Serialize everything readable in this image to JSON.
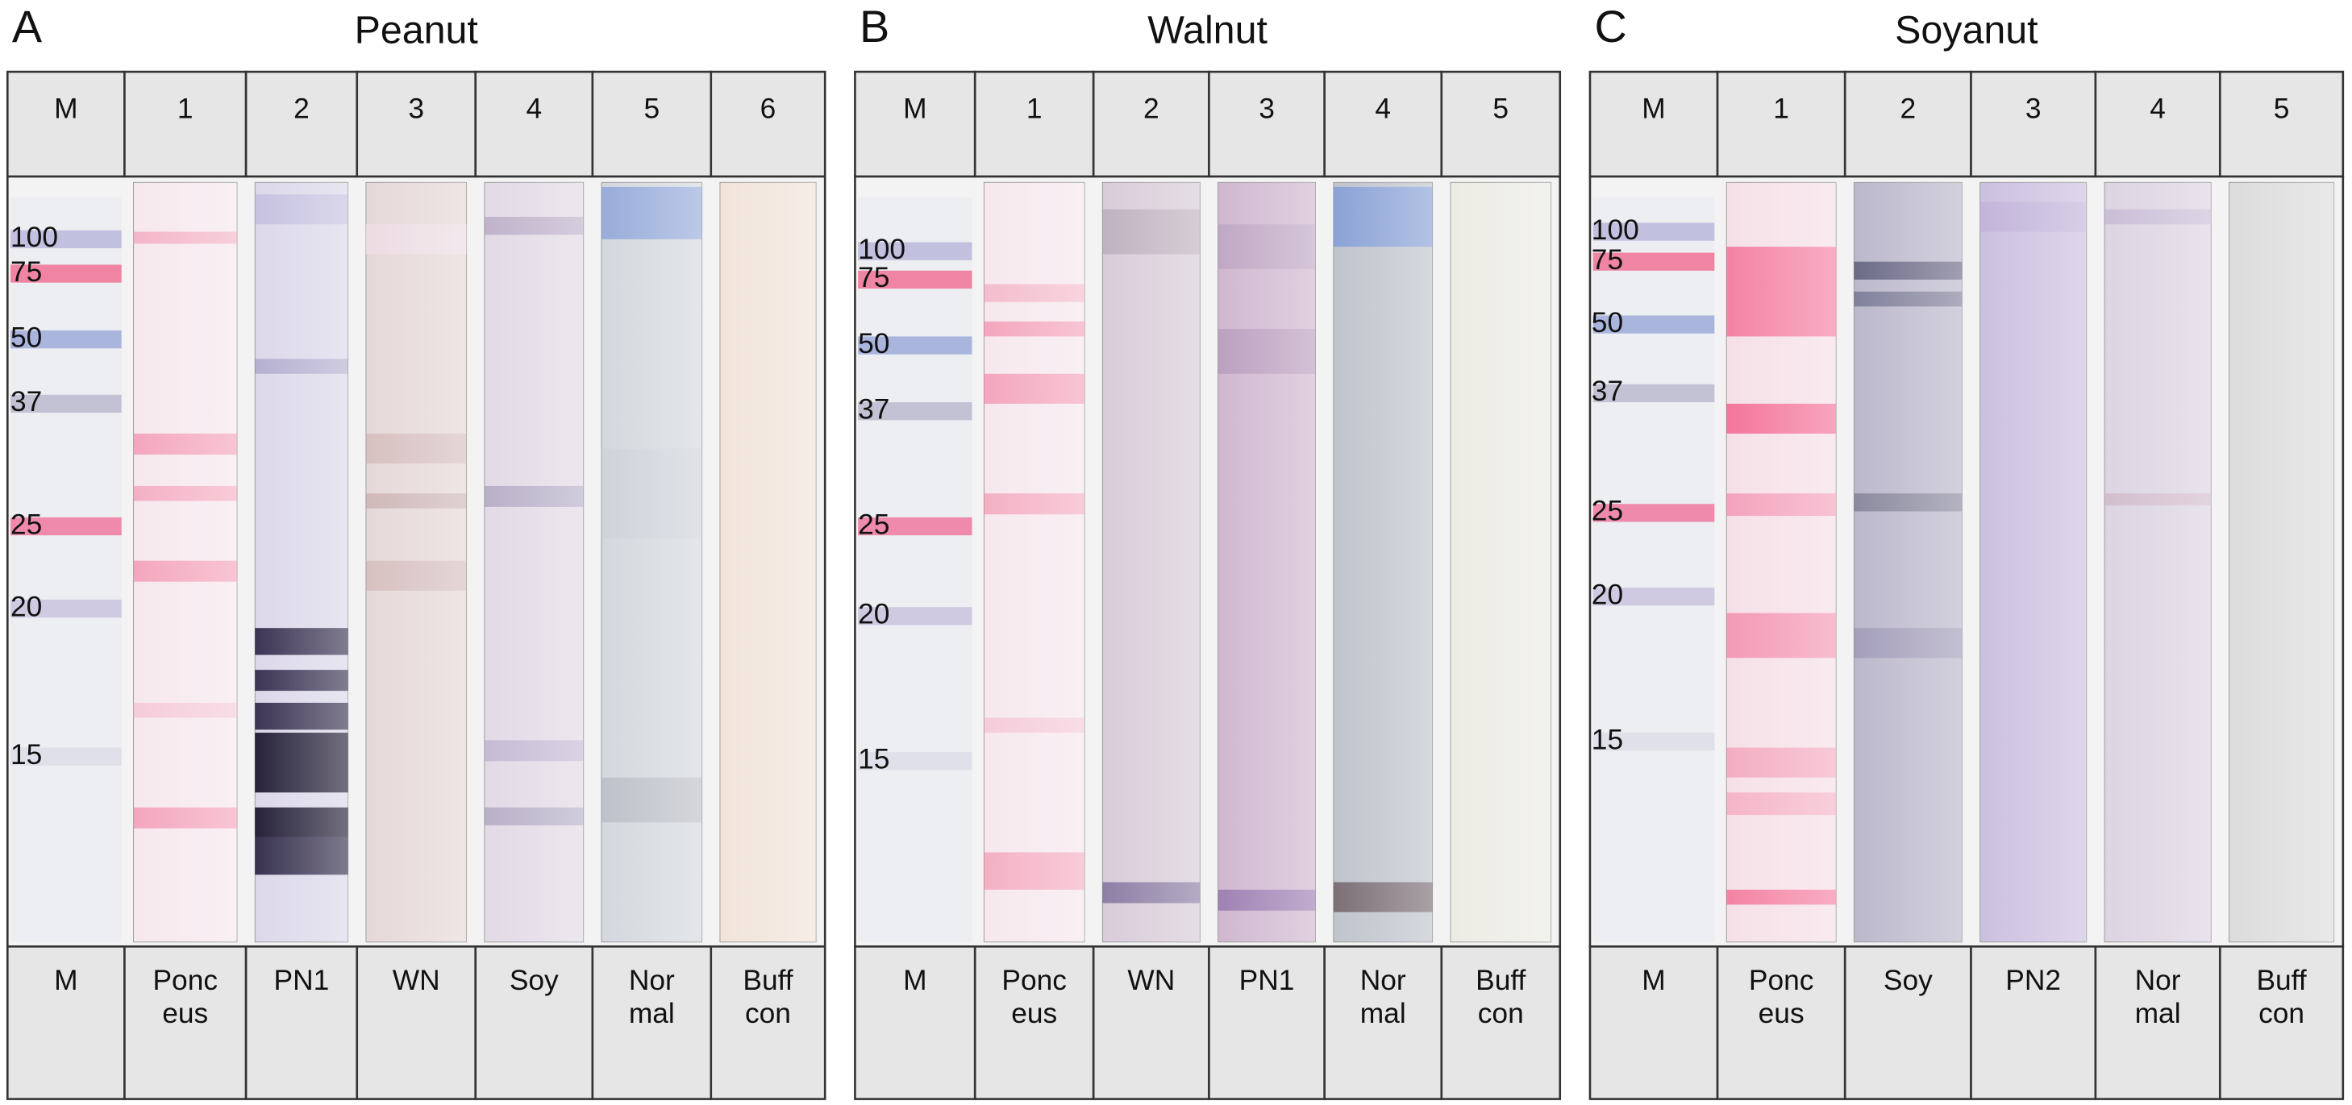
{
  "panels": [
    {
      "letter": "A",
      "title": "Peanut",
      "lanes": [
        "M",
        "1",
        "2",
        "3",
        "4",
        "5",
        "6"
      ],
      "labels": [
        [
          "M"
        ],
        [
          "Ponc",
          "eus"
        ],
        [
          "PN1"
        ],
        [
          "WN"
        ],
        [
          "Soy"
        ],
        [
          "Nor",
          "mal"
        ],
        [
          "Buff",
          "con"
        ]
      ],
      "markers": [
        "100",
        "75",
        "50",
        "37",
        "25",
        "20",
        "15"
      ]
    },
    {
      "letter": "B",
      "title": "Walnut",
      "lanes": [
        "M",
        "1",
        "2",
        "3",
        "4",
        "5"
      ],
      "labels": [
        [
          "M"
        ],
        [
          "Ponc",
          "eus"
        ],
        [
          "WN"
        ],
        [
          "PN1"
        ],
        [
          "Nor",
          "mal"
        ],
        [
          "Buff",
          "con"
        ]
      ],
      "markers": [
        "100",
        "75",
        "50",
        "37",
        "25",
        "20",
        "15"
      ]
    },
    {
      "letter": "C",
      "title": "Soyanut",
      "lanes": [
        "M",
        "1",
        "2",
        "3",
        "4",
        "5"
      ],
      "labels": [
        [
          "M"
        ],
        [
          "Ponc",
          "eus"
        ],
        [
          "Soy"
        ],
        [
          "PN2"
        ],
        [
          "Nor",
          "mal"
        ],
        [
          "Buff",
          "con"
        ]
      ],
      "markers": [
        "100",
        "75",
        "50",
        "37",
        "25",
        "20",
        "15"
      ]
    }
  ]
}
